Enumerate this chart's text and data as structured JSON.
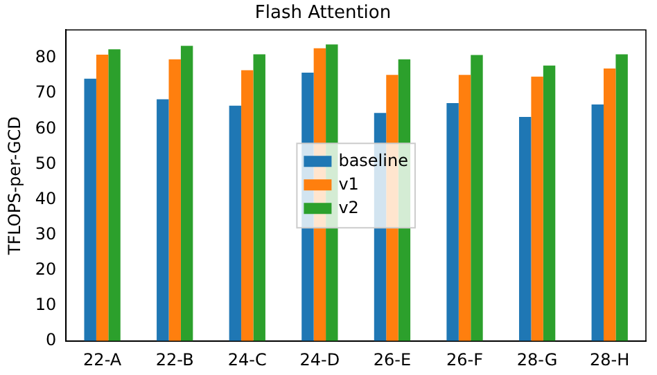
{
  "chart_data": {
    "type": "bar",
    "title": "Flash Attention",
    "ylabel": "TFLOPS-per-GCD",
    "categories": [
      "22-A",
      "22-B",
      "24-C",
      "24-D",
      "26-E",
      "26-F",
      "28-G",
      "28-H"
    ],
    "series": [
      {
        "name": "baseline",
        "color": "#1f77b4",
        "values": [
          74.2,
          68.4,
          66.6,
          75.9,
          64.5,
          67.3,
          63.4,
          66.9
        ]
      },
      {
        "name": "v1",
        "color": "#ff7f0e",
        "values": [
          81,
          79.7,
          76.6,
          82.8,
          75.3,
          75.3,
          74.8,
          77.1
        ]
      },
      {
        "name": "v2",
        "color": "#2ca02c",
        "values": [
          82.5,
          83.5,
          81.1,
          83.9,
          79.7,
          80.9,
          77.9,
          81.1
        ]
      }
    ],
    "ylim": [
      0,
      88
    ],
    "yticks": [
      0,
      10,
      20,
      30,
      40,
      50,
      60,
      70,
      80
    ],
    "grid": false,
    "legend": "center"
  }
}
